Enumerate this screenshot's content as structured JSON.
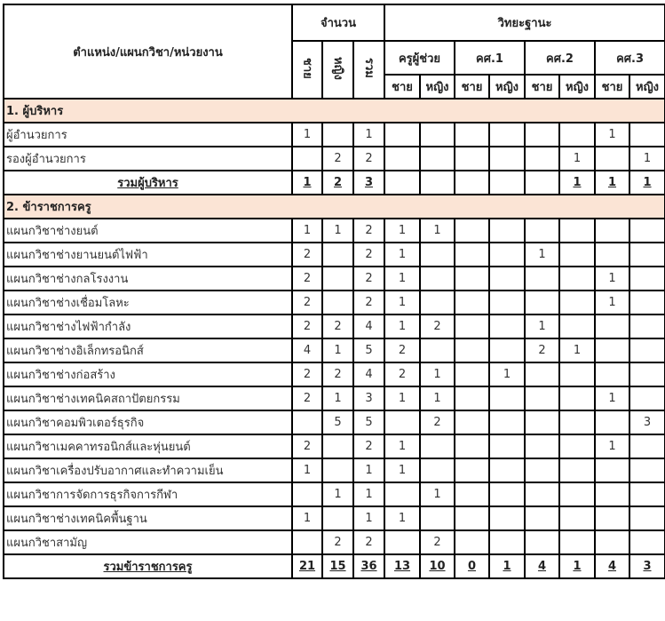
{
  "header": {
    "position_col": "ตำแหน่ง/แผนกวิชา/หน่วยงาน",
    "count_group": "จำนวน",
    "rank_group": "วิทยะฐานะ",
    "count_cols": [
      "ชาย",
      "หญิง",
      "รวม"
    ],
    "ranks": [
      "ครูผู้ช่วย",
      "คศ.1",
      "คศ.2",
      "คศ.3"
    ],
    "gender_cols": [
      "ชาย",
      "หญิง",
      "ชาย",
      "หญิง",
      "ชาย",
      "หญิง",
      "ชาย",
      "หญิง"
    ]
  },
  "colors": {
    "section_bg": "#fbe4d5"
  },
  "sections": [
    {
      "title": "1. ผู้บริหาร",
      "rows": [
        {
          "label": "ผู้อำนวยการ",
          "values": [
            "1",
            "",
            "1",
            "",
            "",
            "",
            "",
            "",
            "",
            "1",
            ""
          ]
        },
        {
          "label": "รองผู้อำนวยการ",
          "values": [
            "",
            "2",
            "2",
            "",
            "",
            "",
            "",
            "",
            "1",
            "",
            "1"
          ]
        }
      ],
      "total": {
        "label": "รวมผู้บริหาร",
        "values": [
          "1",
          "2",
          "3",
          "",
          "",
          "",
          "",
          "",
          "1",
          "1",
          "1"
        ]
      }
    },
    {
      "title": "2. ข้าราชการครู",
      "rows": [
        {
          "label": "แผนกวิชาช่างยนต์",
          "values": [
            "1",
            "1",
            "2",
            "1",
            "1",
            "",
            "",
            "",
            "",
            "",
            ""
          ]
        },
        {
          "label": "แผนกวิชาช่างยานยนต์ไฟฟ้า",
          "values": [
            "2",
            "",
            "2",
            "1",
            "",
            "",
            "",
            "1",
            "",
            "",
            ""
          ]
        },
        {
          "label": "แผนกวิชาช่างกลโรงงาน",
          "values": [
            "2",
            "",
            "2",
            "1",
            "",
            "",
            "",
            "",
            "",
            "1",
            ""
          ]
        },
        {
          "label": "แผนกวิชาช่างเชื่อมโลหะ",
          "values": [
            "2",
            "",
            "2",
            "1",
            "",
            "",
            "",
            "",
            "",
            "1",
            ""
          ]
        },
        {
          "label": "แผนกวิชาช่างไฟฟ้ากำลัง",
          "values": [
            "2",
            "2",
            "4",
            "1",
            "2",
            "",
            "",
            "1",
            "",
            "",
            ""
          ]
        },
        {
          "label": "แผนกวิชาช่างอิเล็กทรอนิกส์",
          "values": [
            "4",
            "1",
            "5",
            "2",
            "",
            "",
            "",
            "2",
            "1",
            "",
            ""
          ]
        },
        {
          "label": "แผนกวิชาช่างก่อสร้าง",
          "values": [
            "2",
            "2",
            "4",
            "2",
            "1",
            "",
            "1",
            "",
            "",
            "",
            ""
          ]
        },
        {
          "label": "แผนกวิชาช่างเทคนิคสถาปัตยกรรม",
          "values": [
            "2",
            "1",
            "3",
            "1",
            "1",
            "",
            "",
            "",
            "",
            "1",
            ""
          ]
        },
        {
          "label": "แผนกวิชาคอมพิวเตอร์ธุรกิจ",
          "values": [
            "",
            "5",
            "5",
            "",
            "2",
            "",
            "",
            "",
            "",
            "",
            "3"
          ]
        },
        {
          "label": "แผนกวิชาเมคคาทรอนิกส์และหุ่นยนต์",
          "values": [
            "2",
            "",
            "2",
            "1",
            "",
            "",
            "",
            "",
            "",
            "1",
            ""
          ]
        },
        {
          "label": "แผนกวิชาเครื่องปรับอากาศและทำความเย็น",
          "values": [
            "1",
            "",
            "1",
            "1",
            "",
            "",
            "",
            "",
            "",
            "",
            ""
          ]
        },
        {
          "label": "แผนกวิชาการจัดการธุรกิจการกีฬา",
          "values": [
            "",
            "1",
            "1",
            "",
            "1",
            "",
            "",
            "",
            "",
            "",
            ""
          ]
        },
        {
          "label": "แผนกวิชาช่างเทคนิคพื้นฐาน",
          "values": [
            "1",
            "",
            "1",
            "1",
            "",
            "",
            "",
            "",
            "",
            "",
            ""
          ]
        },
        {
          "label": "แผนกวิชาสามัญ",
          "values": [
            "",
            "2",
            "2",
            "",
            "2",
            "",
            "",
            "",
            "",
            "",
            ""
          ]
        }
      ],
      "total": {
        "label": "รวมข้าราชการครู",
        "values": [
          "21",
          "15",
          "36",
          "13",
          "10",
          "0",
          "1",
          "4",
          "1",
          "4",
          "3"
        ]
      }
    }
  ]
}
